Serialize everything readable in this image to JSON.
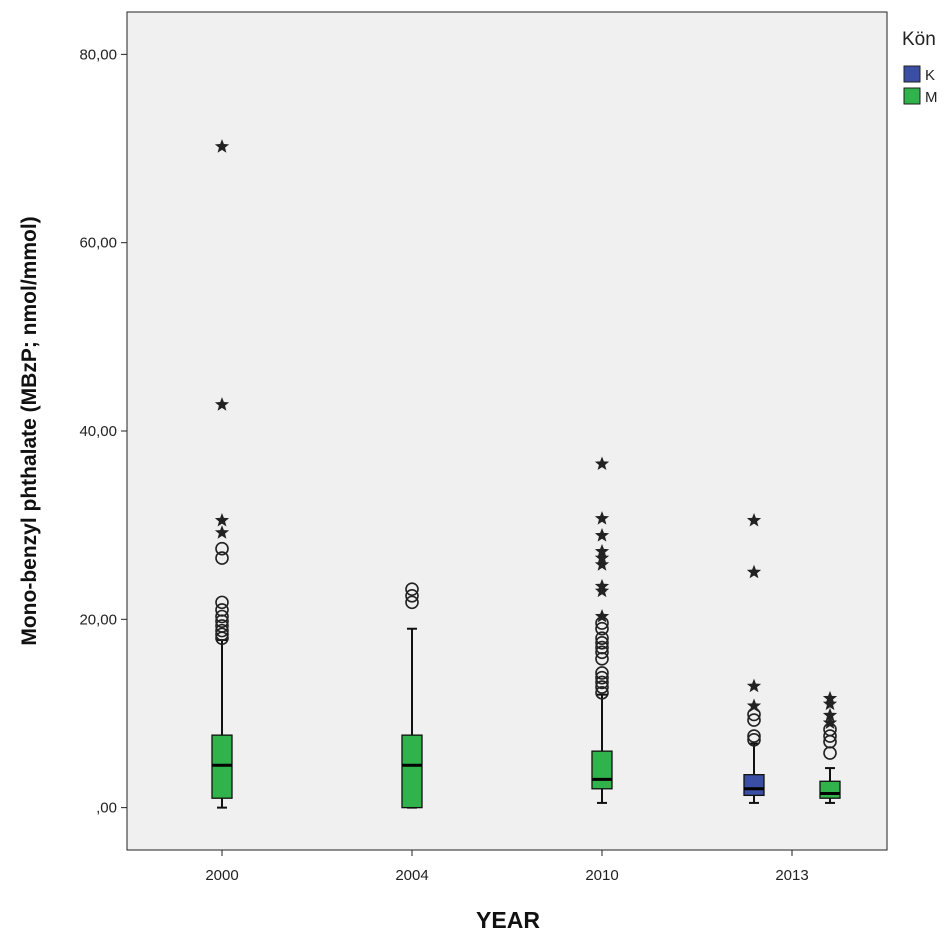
{
  "chart_data": {
    "type": "boxplot",
    "title": "",
    "xlabel": "YEAR",
    "ylabel": "Mono-benzyl phthalate (MBzP; nmol/mmol)",
    "ylim": [
      -4.5,
      84.5
    ],
    "yticks": [
      {
        "value": 0,
        "label": ",00"
      },
      {
        "value": 20,
        "label": "20,00"
      },
      {
        "value": 40,
        "label": "40,00"
      },
      {
        "value": 60,
        "label": "60,00"
      },
      {
        "value": 80,
        "label": "80,00"
      }
    ],
    "grid": false,
    "legend": {
      "title": "Kön",
      "placement": "right",
      "entries": [
        {
          "label": "K",
          "color": "#3a4fa3"
        },
        {
          "label": "M",
          "color": "#2fb34a"
        }
      ]
    },
    "categories": [
      "2000",
      "2004",
      "2010",
      "2013"
    ],
    "boxes": [
      {
        "category": "2000",
        "group": "M",
        "slot": 0.5,
        "min": 0.0,
        "q1": 1.0,
        "median": 4.5,
        "q3": 7.7,
        "max": 17.8,
        "outliers": [
          18.0,
          18.4,
          18.8,
          19.3,
          19.8,
          20.3,
          21.0,
          21.8,
          26.5,
          27.5
        ],
        "extremes": [
          29.2,
          30.5,
          42.8,
          70.2
        ]
      },
      {
        "category": "2004",
        "group": "M",
        "slot": 1.5,
        "min": 0.0,
        "q1": 0.0,
        "median": 4.5,
        "q3": 7.7,
        "max": 19.0,
        "outliers": [
          21.8,
          22.5,
          23.2
        ],
        "extremes": []
      },
      {
        "category": "2010",
        "group": "M",
        "slot": 2.5,
        "min": 0.5,
        "q1": 2.0,
        "median": 3.0,
        "q3": 6.0,
        "max": 12.0,
        "outliers": [
          12.2,
          12.8,
          13.3,
          13.8,
          14.3,
          15.8,
          16.5,
          17.0,
          17.5,
          18.0,
          19.0,
          19.6
        ],
        "extremes": [
          20.3,
          23.0,
          23.5,
          25.8,
          26.5,
          27.2,
          28.9,
          30.7,
          36.5
        ]
      },
      {
        "category": "2013",
        "group": "K",
        "slot": 3.3,
        "min": 0.5,
        "q1": 1.3,
        "median": 2.0,
        "q3": 3.5,
        "max": 6.8,
        "outliers": [
          7.2,
          7.6,
          9.3,
          9.9
        ],
        "extremes": [
          10.8,
          12.9,
          25.0,
          30.5
        ]
      },
      {
        "category": "2013",
        "group": "M",
        "slot": 3.7,
        "min": 0.5,
        "q1": 1.0,
        "median": 1.5,
        "q3": 2.8,
        "max": 4.2,
        "outliers": [
          5.8,
          7.0,
          7.6,
          8.3
        ],
        "extremes": [
          9.0,
          9.8,
          11.0,
          11.6
        ]
      }
    ]
  }
}
